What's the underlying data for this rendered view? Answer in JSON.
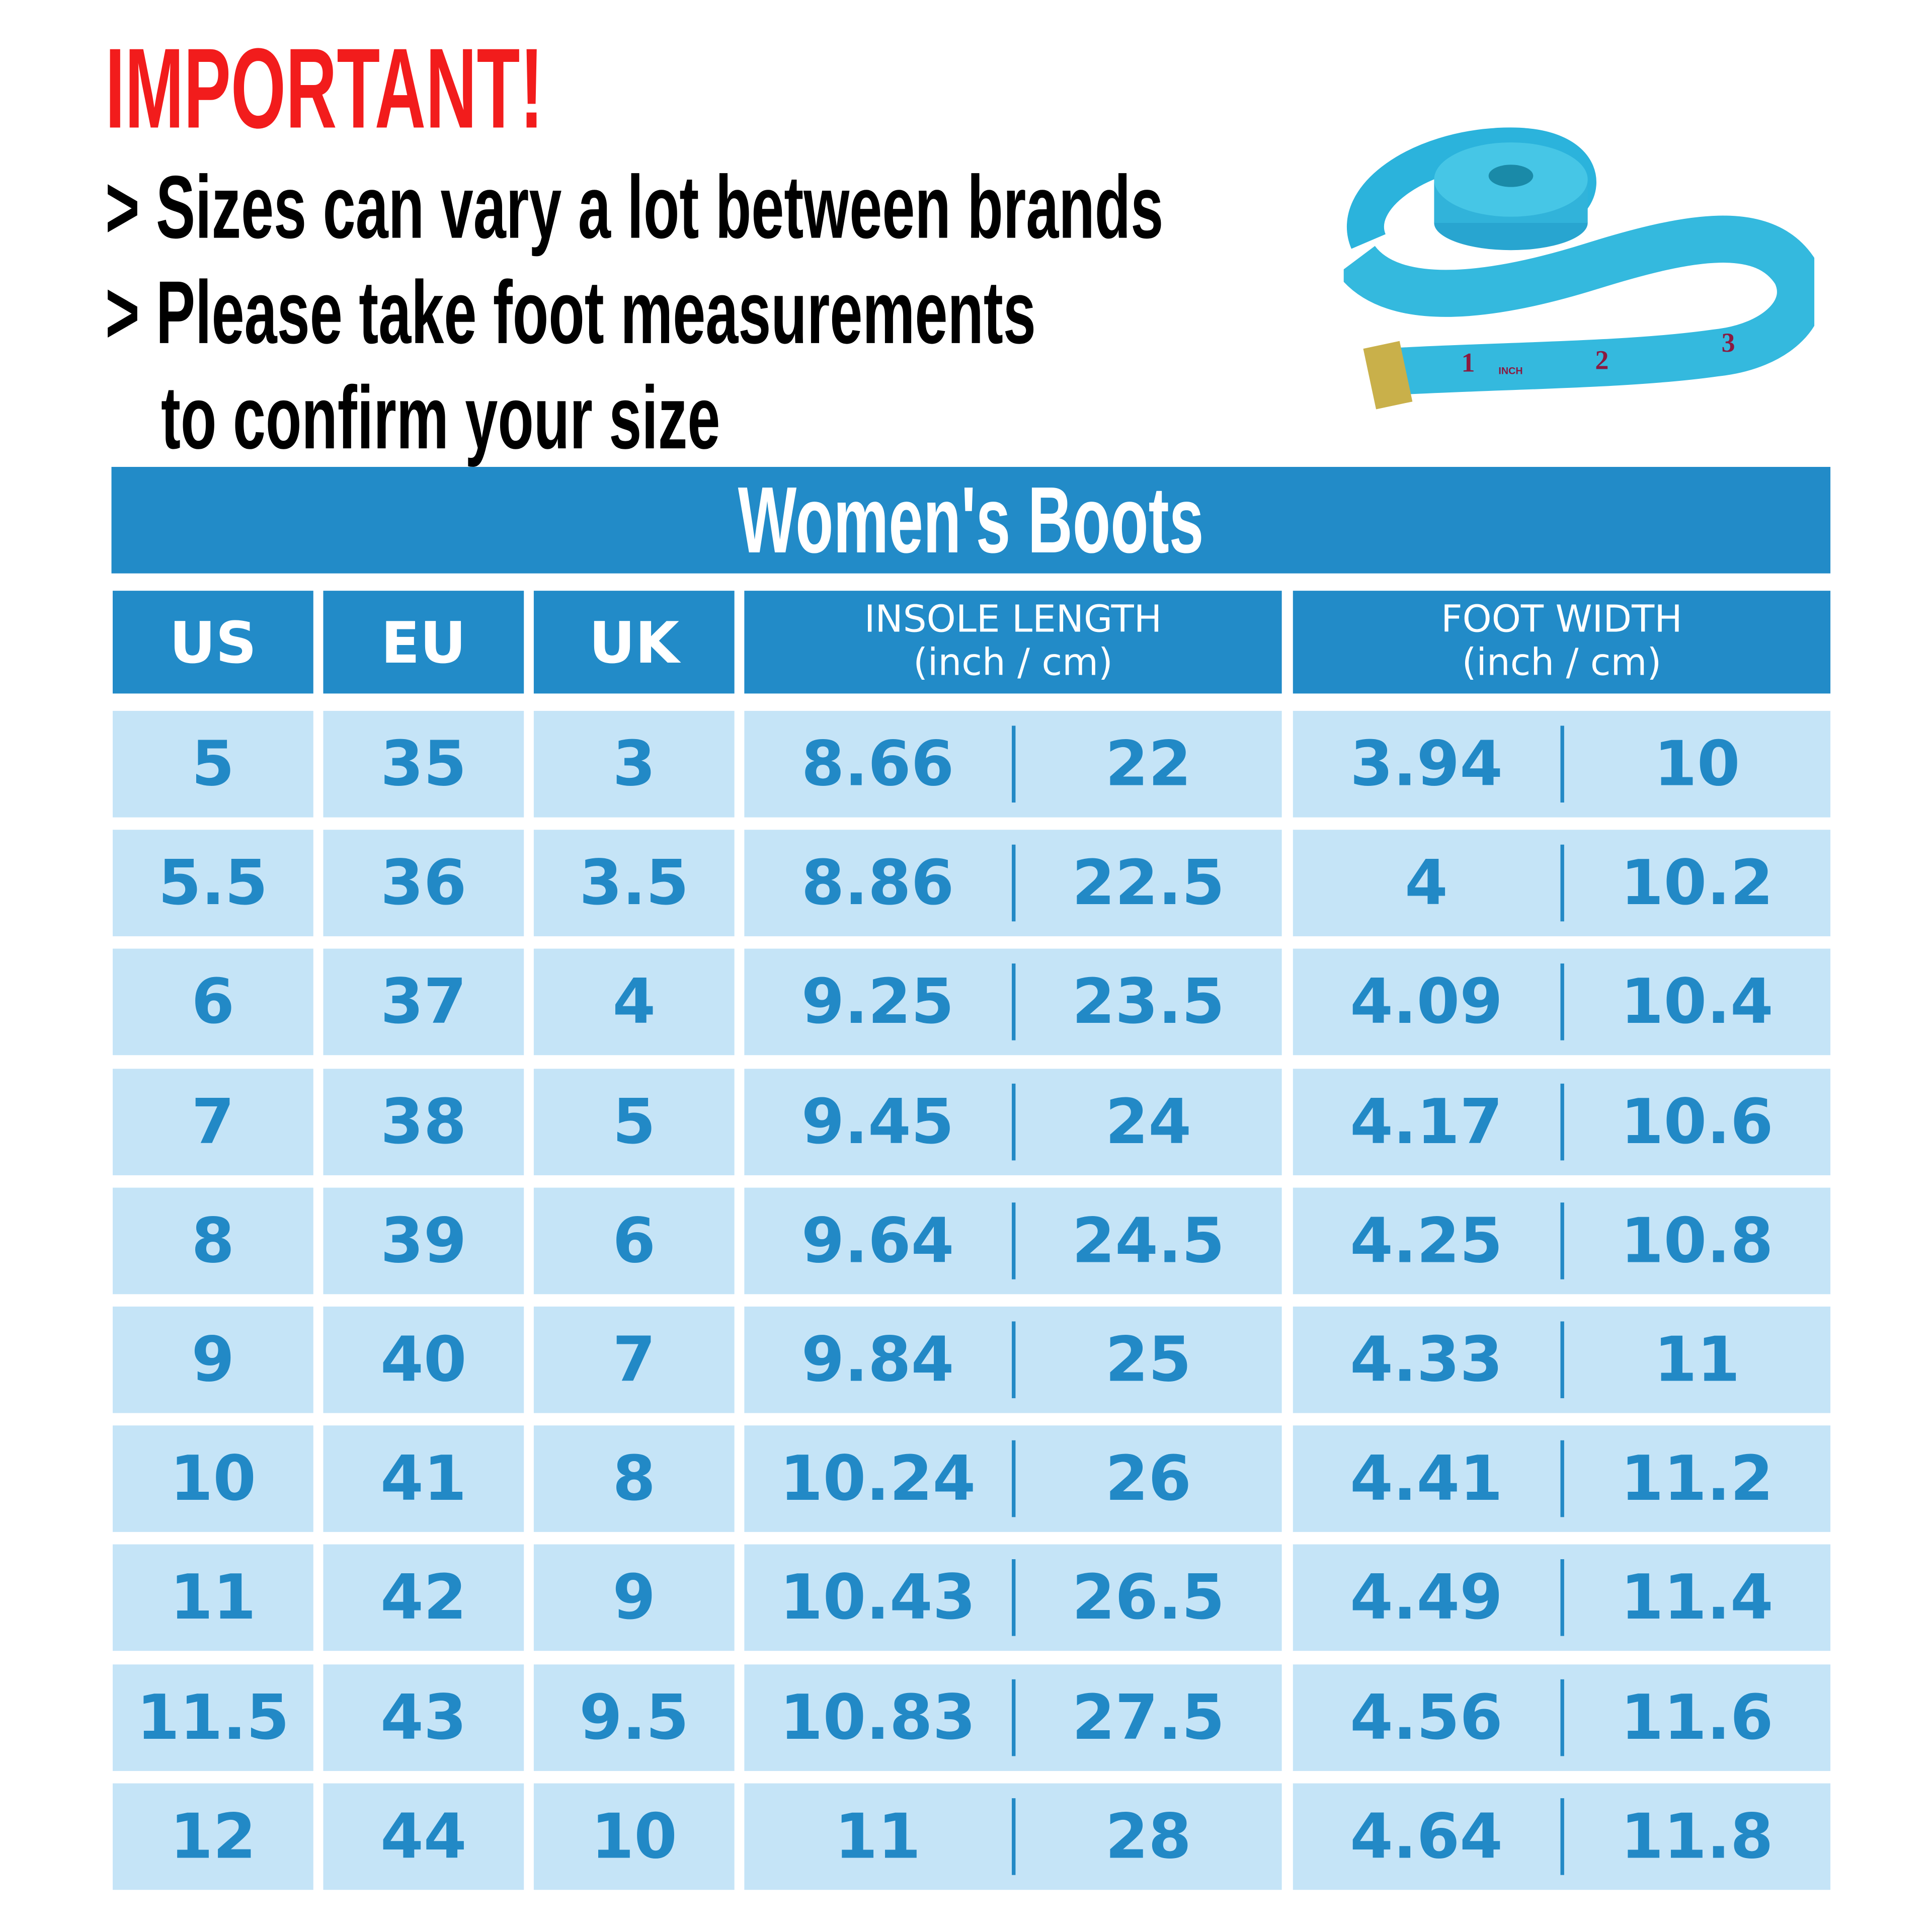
{
  "header": {
    "important": "IMPORTANT!",
    "notes": [
      "> Sizes can vary a lot between brands",
      "> Please take foot measurements",
      "to confirm your size"
    ]
  },
  "image": {
    "name": "measuring-tape",
    "tape_text": [
      "1",
      "INCH",
      "2",
      "3"
    ]
  },
  "table": {
    "title": "Women's Boots",
    "columns": [
      {
        "label": "US"
      },
      {
        "label": "EU"
      },
      {
        "label": "UK"
      },
      {
        "label": "INSOLE LENGTH",
        "sub": "(inch / cm)"
      },
      {
        "label": "FOOT WIDTH",
        "sub": "(inch / cm)"
      }
    ],
    "rows": [
      [
        "5",
        "35",
        "3",
        "8.66",
        "22",
        "3.94",
        "10"
      ],
      [
        "5.5",
        "36",
        "3.5",
        "8.86",
        "22.5",
        "4",
        "10.2"
      ],
      [
        "6",
        "37",
        "4",
        "9.25",
        "23.5",
        "4.09",
        "10.4"
      ],
      [
        "7",
        "38",
        "5",
        "9.45",
        "24",
        "4.17",
        "10.6"
      ],
      [
        "8",
        "39",
        "6",
        "9.64",
        "24.5",
        "4.25",
        "10.8"
      ],
      [
        "9",
        "40",
        "7",
        "9.84",
        "25",
        "4.33",
        "11"
      ],
      [
        "10",
        "41",
        "8",
        "10.24",
        "26",
        "4.41",
        "11.2"
      ],
      [
        "11",
        "42",
        "9",
        "10.43",
        "26.5",
        "4.49",
        "11.4"
      ],
      [
        "11.5",
        "43",
        "9.5",
        "10.83",
        "27.5",
        "4.56",
        "11.6"
      ],
      [
        "12",
        "44",
        "10",
        "11",
        "28",
        "4.64",
        "11.8"
      ]
    ]
  },
  "colors": {
    "accent": "#228bc8",
    "row_bg": "#c5e4f7",
    "value_text": "#2289c6",
    "important": "#f21c1c"
  }
}
